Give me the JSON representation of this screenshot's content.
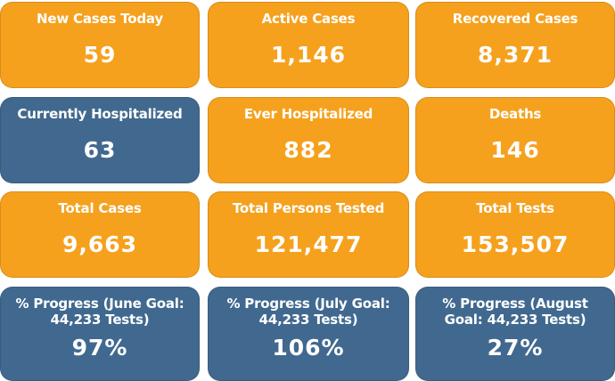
{
  "tiles": [
    {
      "label": "New Cases Today",
      "value": "59",
      "color": "#f5a11e"
    },
    {
      "label": "Active Cases",
      "value": "1,146",
      "color": "#f5a11e"
    },
    {
      "label": "Recovered Cases",
      "value": "8,371",
      "color": "#f5a11e"
    },
    {
      "label": "Currently Hospitalized",
      "value": "63",
      "color": "#41698f"
    },
    {
      "label": "Ever Hospitalized",
      "value": "882",
      "color": "#f5a11e"
    },
    {
      "label": "Deaths",
      "value": "146",
      "color": "#f5a11e"
    },
    {
      "label": "Total Cases",
      "value": "9,663",
      "color": "#f5a11e"
    },
    {
      "label": "Total Persons Tested",
      "value": "121,477",
      "color": "#f5a11e"
    },
    {
      "label": "Total Tests",
      "value": "153,507",
      "color": "#f5a11e"
    },
    {
      "label": "% Progress (June Goal: 44,233 Tests)",
      "value": "97%",
      "color": "#41698f"
    },
    {
      "label": "% Progress (July Goal: 44,233 Tests)",
      "value": "106%",
      "color": "#41698f"
    },
    {
      "label": "% Progress (August Goal: 44,233 Tests)",
      "value": "27%",
      "color": "#41698f"
    }
  ]
}
